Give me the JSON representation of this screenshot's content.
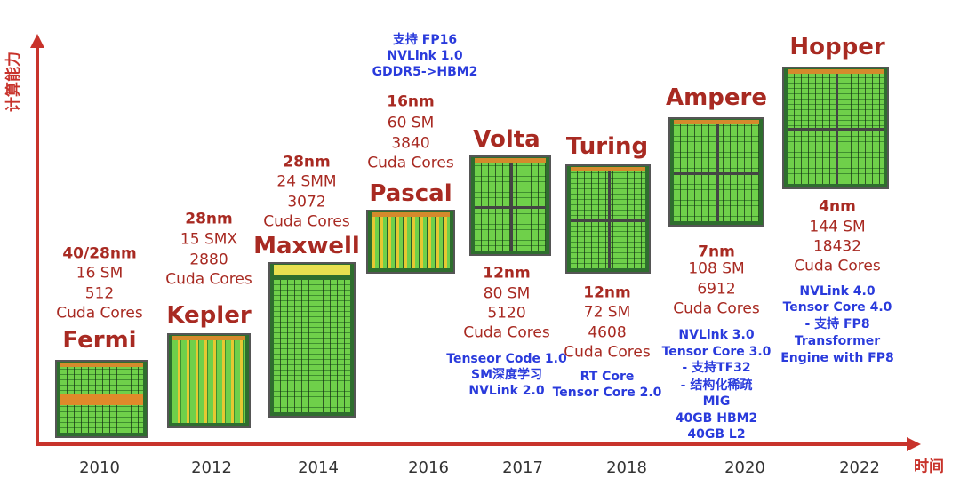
{
  "axes": {
    "y_label": "计算能力",
    "x_label": "时间"
  },
  "colors": {
    "accent_red": "#a82a22",
    "axis_red": "#c8332b",
    "feature_blue": "#2a3bdc"
  },
  "years": [
    "2010",
    "2012",
    "2014",
    "2016",
    "2017",
    "2018",
    "2020",
    "2022"
  ],
  "architectures": [
    {
      "name": "Fermi",
      "specs": [
        "40/28nm",
        "16 SM",
        "512",
        "Cuda Cores"
      ],
      "features": []
    },
    {
      "name": "Kepler",
      "specs": [
        "28nm",
        "15 SMX",
        "2880",
        "Cuda Cores"
      ],
      "features": []
    },
    {
      "name": "Maxwell",
      "specs": [
        "28nm",
        "24 SMM",
        "3072",
        "Cuda Cores"
      ],
      "features": []
    },
    {
      "name": "Pascal",
      "specs": [
        "16nm",
        "60 SM",
        "3840",
        "Cuda Cores"
      ],
      "features": [
        "支持 FP16",
        "NVLink 1.0",
        "GDDR5->HBM2"
      ]
    },
    {
      "name": "Volta",
      "specs": [
        "12nm",
        "80 SM",
        "5120",
        "Cuda Cores"
      ],
      "features": [
        "Tenseor Code 1.0",
        "SM深度学习",
        "NVLink 2.0"
      ]
    },
    {
      "name": "Turing",
      "specs": [
        "12nm",
        "72 SM",
        "4608",
        "Cuda Cores"
      ],
      "features": [
        "RT Core",
        "Tensor Core 2.0"
      ]
    },
    {
      "name": "Ampere",
      "specs": [
        "7nm",
        "108 SM",
        "6912",
        "Cuda Cores"
      ],
      "features": [
        "NVLink 3.0",
        "Tensor Core 3.0",
        "- 支持TF32",
        "- 结构化稀疏",
        "MIG",
        "40GB HBM2",
        "40GB L2"
      ]
    },
    {
      "name": "Hopper",
      "specs": [
        "4nm",
        "144 SM",
        "18432",
        "Cuda Cores"
      ],
      "features": [
        "NVLink 4.0",
        "Tensor Core 4.0",
        "- 支持 FP8",
        "Transformer",
        "Engine with FP8"
      ]
    }
  ]
}
